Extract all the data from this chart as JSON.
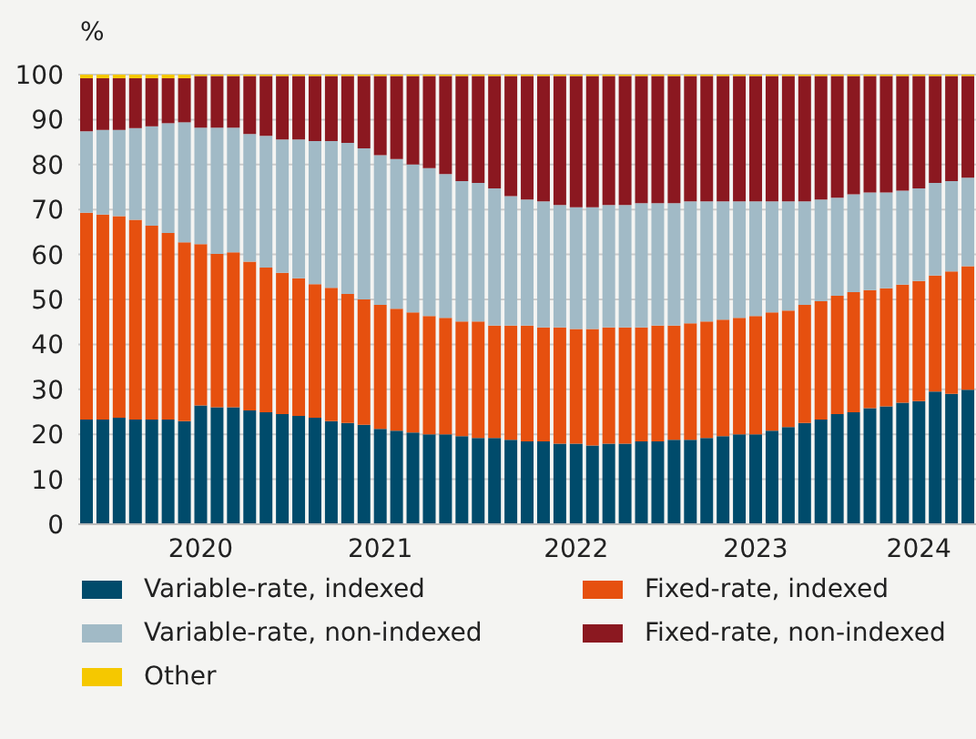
{
  "chart_data": {
    "type": "bar",
    "stacked": true,
    "ylabel": "%",
    "categories": [
      null,
      null,
      null,
      null,
      null,
      null,
      null,
      "2020",
      null,
      null,
      null,
      null,
      null,
      null,
      null,
      null,
      null,
      null,
      "2021",
      null,
      null,
      null,
      null,
      null,
      null,
      null,
      null,
      null,
      null,
      null,
      "2022",
      null,
      null,
      null,
      null,
      null,
      null,
      null,
      null,
      null,
      null,
      "2023",
      null,
      null,
      null,
      null,
      null,
      null,
      null,
      null,
      null,
      "2024",
      null,
      null,
      null
    ],
    "series": [
      {
        "name": "Variable-rate, indexed",
        "color": "#004b6b",
        "values": [
          23.3,
          23.3,
          23.7,
          23.3,
          23.3,
          23.3,
          22.9,
          26.4,
          26.0,
          26.0,
          25.3,
          24.9,
          24.5,
          24.1,
          23.7,
          22.9,
          22.5,
          22.1,
          21.2,
          20.8,
          20.4,
          20.0,
          20.0,
          19.6,
          19.2,
          19.2,
          18.8,
          18.4,
          18.4,
          17.9,
          17.9,
          17.5,
          17.9,
          17.9,
          18.4,
          18.4,
          18.8,
          18.8,
          19.2,
          19.6,
          20.0,
          20.0,
          20.8,
          21.6,
          22.5,
          23.3,
          24.5,
          24.9,
          25.8,
          26.2,
          27.0,
          27.4,
          29.5,
          29.0,
          29.9
        ]
      },
      {
        "name": "Fixed-rate, indexed",
        "color": "#e6500f",
        "values": [
          46.0,
          45.6,
          44.8,
          44.4,
          43.1,
          41.5,
          39.8,
          35.9,
          34.1,
          34.5,
          33.1,
          32.2,
          31.4,
          30.6,
          29.7,
          29.7,
          28.7,
          27.9,
          27.6,
          27.1,
          26.7,
          26.3,
          25.9,
          25.5,
          25.9,
          25.0,
          25.4,
          25.8,
          25.4,
          25.9,
          25.5,
          25.9,
          25.9,
          25.9,
          25.4,
          25.8,
          25.4,
          25.9,
          25.9,
          25.9,
          25.9,
          26.3,
          26.3,
          25.9,
          26.3,
          26.3,
          26.3,
          26.7,
          26.3,
          26.3,
          26.3,
          26.7,
          25.8,
          27.2,
          27.5
        ]
      },
      {
        "name": "Variable-rate, non-indexed",
        "color": "#a1bac6",
        "values": [
          18.1,
          18.8,
          19.2,
          20.4,
          22.1,
          24.4,
          26.7,
          25.9,
          28.1,
          27.7,
          28.4,
          29.3,
          29.7,
          30.9,
          31.8,
          32.6,
          33.6,
          33.6,
          33.3,
          33.3,
          32.9,
          32.9,
          32.0,
          31.2,
          30.8,
          30.5,
          28.8,
          28.0,
          28.0,
          27.2,
          27.1,
          27.1,
          27.2,
          27.2,
          27.6,
          27.2,
          27.2,
          27.1,
          26.7,
          26.3,
          25.9,
          25.5,
          24.7,
          24.3,
          23.0,
          22.6,
          21.8,
          21.8,
          21.7,
          21.3,
          20.9,
          20.6,
          20.6,
          20.1,
          19.7
        ]
      },
      {
        "name": "Fixed-rate, non-indexed",
        "color": "#8b1820",
        "values": [
          11.8,
          11.5,
          11.5,
          11.1,
          10.7,
          10.0,
          9.8,
          11.5,
          11.5,
          11.5,
          12.9,
          13.3,
          14.1,
          14.1,
          14.5,
          14.5,
          14.9,
          16.1,
          17.6,
          18.5,
          19.7,
          20.5,
          21.8,
          23.4,
          23.8,
          25.0,
          26.7,
          27.5,
          27.9,
          28.7,
          29.2,
          29.2,
          28.7,
          28.7,
          28.3,
          28.3,
          28.3,
          27.9,
          27.9,
          27.9,
          27.9,
          27.9,
          27.9,
          27.9,
          27.9,
          27.5,
          27.1,
          26.3,
          25.9,
          25.9,
          25.5,
          25.0,
          23.8,
          23.4,
          22.6
        ]
      },
      {
        "name": "Other",
        "color": "#f5c800",
        "values": [
          0.8,
          0.8,
          0.8,
          0.8,
          0.8,
          0.8,
          0.8,
          0.3,
          0.3,
          0.3,
          0.3,
          0.3,
          0.3,
          0.3,
          0.3,
          0.3,
          0.3,
          0.3,
          0.3,
          0.3,
          0.3,
          0.3,
          0.3,
          0.3,
          0.3,
          0.3,
          0.3,
          0.3,
          0.3,
          0.3,
          0.3,
          0.3,
          0.3,
          0.3,
          0.3,
          0.3,
          0.3,
          0.3,
          0.3,
          0.3,
          0.3,
          0.3,
          0.3,
          0.3,
          0.3,
          0.3,
          0.3,
          0.3,
          0.3,
          0.3,
          0.3,
          0.3,
          0.3,
          0.3,
          0.3
        ]
      }
    ],
    "ylim": [
      0,
      100
    ],
    "yticks": [
      0,
      10,
      20,
      30,
      40,
      50,
      60,
      70,
      80,
      90,
      100
    ],
    "grid": "y",
    "legend": "bottom"
  }
}
